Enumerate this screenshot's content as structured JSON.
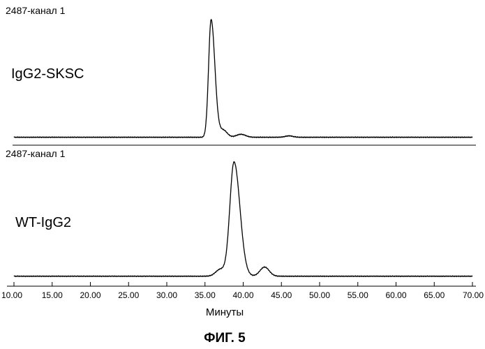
{
  "figure": {
    "caption": "ФИГ. 5"
  },
  "chart_data": [
    {
      "type": "line",
      "channel_label": "2487-канал 1",
      "sample_label": "IgG2-SKSC",
      "xlabel": "Минуты",
      "xlim": [
        10,
        70
      ],
      "x_ticks": [
        "10.00",
        "15.00",
        "20.00",
        "25.00",
        "30.00",
        "35.00",
        "40.00",
        "45.00",
        "50.00",
        "55.00",
        "60.00",
        "65.00",
        "70.00"
      ],
      "baseline": 0.02,
      "peaks": [
        {
          "center": 35.8,
          "height": 1.0,
          "sigma": 0.33,
          "tail": 0.5
        },
        {
          "center": 37.4,
          "height": 0.06,
          "sigma": 0.5,
          "tail": 0
        },
        {
          "center": 39.7,
          "height": 0.025,
          "sigma": 0.6,
          "tail": 0
        },
        {
          "center": 46.0,
          "height": 0.012,
          "sigma": 0.5,
          "tail": 0
        }
      ]
    },
    {
      "type": "line",
      "channel_label": "2487-канал 1",
      "sample_label": "WT-IgG2",
      "xlabel": "Минуты",
      "xlim": [
        10,
        70
      ],
      "x_ticks": [
        "10.00",
        "15.00",
        "20.00",
        "25.00",
        "30.00",
        "35.00",
        "40.00",
        "45.00",
        "50.00",
        "55.00",
        "60.00",
        "65.00",
        "70.00"
      ],
      "baseline": 0.02,
      "peaks": [
        {
          "center": 38.8,
          "height": 1.0,
          "sigma": 0.55,
          "tail": 0.4
        },
        {
          "center": 37.0,
          "height": 0.06,
          "sigma": 0.6,
          "tail": 0
        },
        {
          "center": 42.8,
          "height": 0.08,
          "sigma": 0.6,
          "tail": 0
        }
      ]
    }
  ]
}
